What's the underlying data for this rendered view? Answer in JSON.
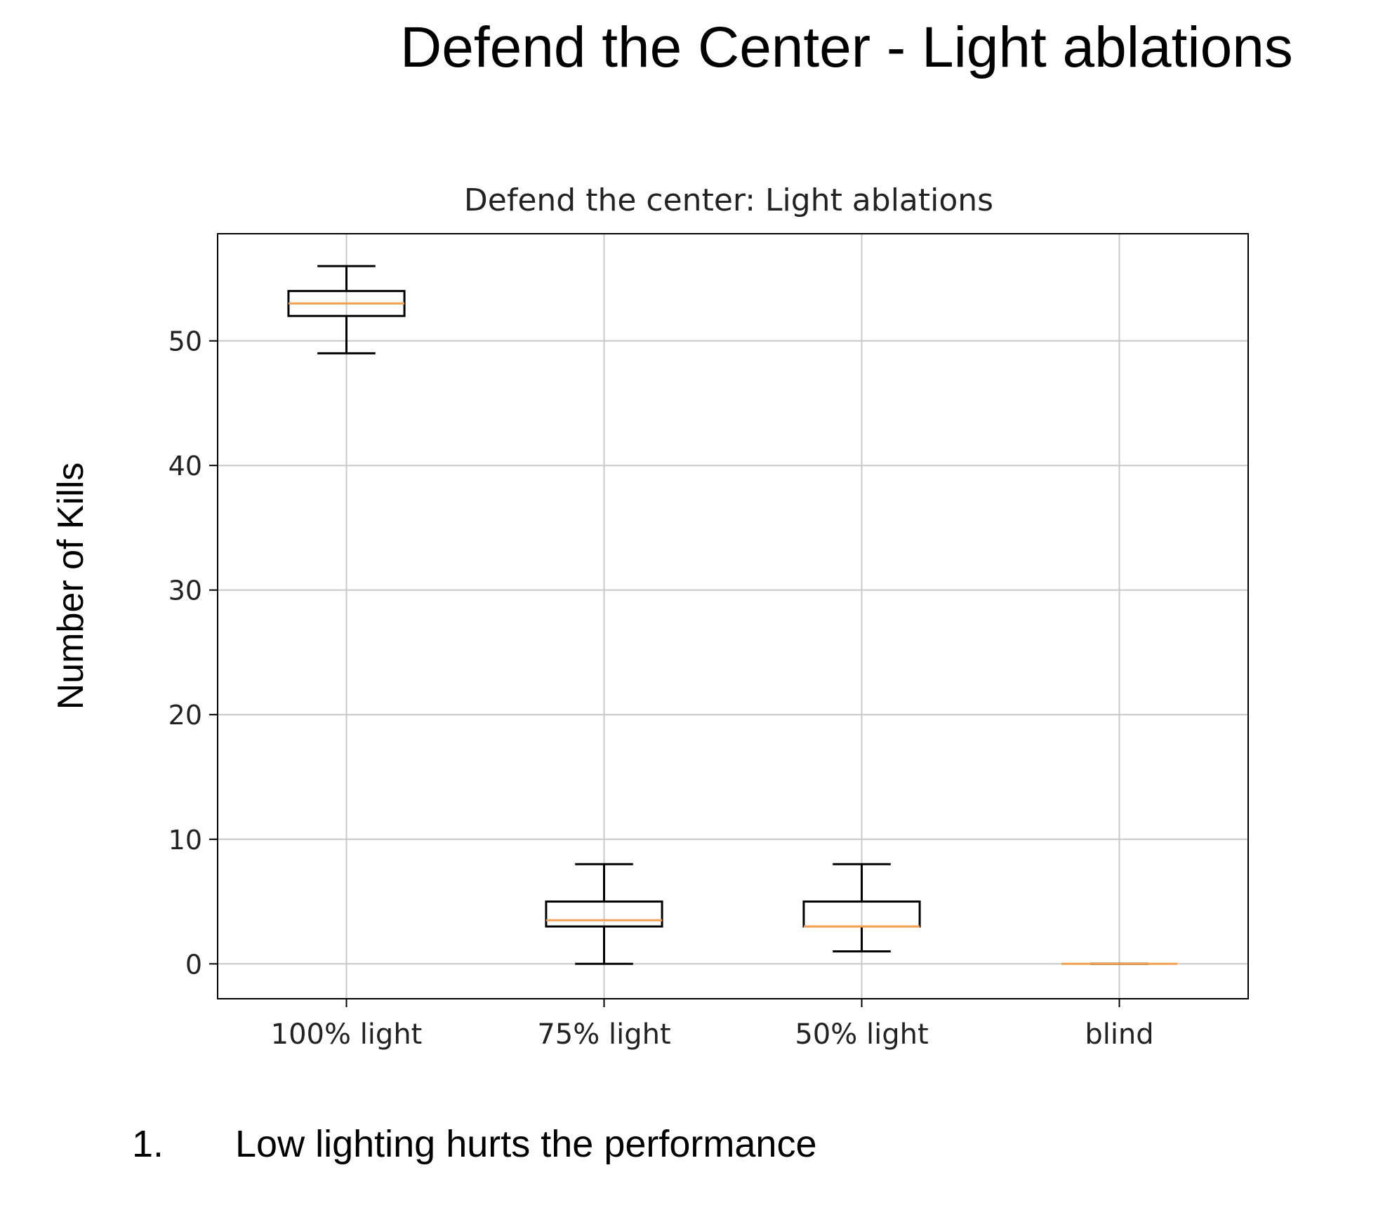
{
  "slide": {
    "title": "Defend the Center - Light ablations"
  },
  "list": [
    {
      "number": "1.",
      "text": "Low lighting hurts the performance"
    }
  ],
  "chart_data": {
    "type": "box",
    "title": "Defend the center: Light ablations",
    "xlabel": "",
    "ylabel": "Number of Kills",
    "categories": [
      "100% light",
      "75% light",
      "50% light",
      "blind"
    ],
    "boxes": [
      {
        "category": "100% light",
        "whisker_low": 49,
        "q1": 52,
        "median": 53,
        "q3": 54,
        "whisker_high": 56
      },
      {
        "category": "75% light",
        "whisker_low": 0,
        "q1": 3,
        "median": 3.5,
        "q3": 5,
        "whisker_high": 8
      },
      {
        "category": "50% light",
        "whisker_low": 1,
        "q1": 3,
        "median": 3,
        "q3": 5,
        "whisker_high": 8
      },
      {
        "category": "blind",
        "whisker_low": 0,
        "q1": 0,
        "median": 0,
        "q3": 0,
        "whisker_high": 0
      }
    ],
    "ylim": [
      -2.8,
      58.6
    ],
    "yticks": [
      0,
      10,
      20,
      30,
      40,
      50
    ],
    "grid": true,
    "colors": {
      "box": "#000000",
      "median": "#f5a050",
      "grid": "#c8c8c8"
    }
  }
}
